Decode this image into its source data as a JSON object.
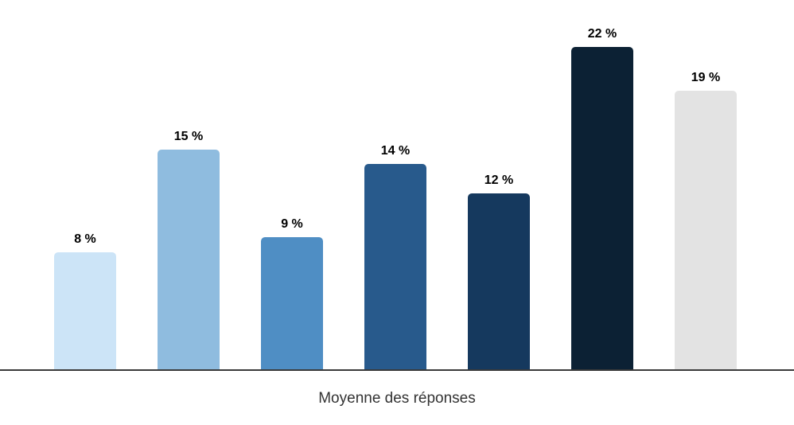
{
  "chart_data": {
    "type": "bar",
    "values": [
      8,
      15,
      9,
      14,
      12,
      22,
      19
    ],
    "value_labels": [
      "8 %",
      "15 %",
      "9 %",
      "14 %",
      "12 %",
      "22 %",
      "19 %"
    ],
    "bar_colors": [
      "#cce4f7",
      "#8fbcdf",
      "#4f8ec4",
      "#285a8c",
      "#15395e",
      "#0c2134",
      "#e3e3e3"
    ],
    "xlabel": "Moyenne des réponses",
    "ylim": [
      0,
      22
    ],
    "grid": false,
    "legend_position": "none",
    "axis_line_color": "#3a3a3a",
    "label_color": "#000000"
  }
}
